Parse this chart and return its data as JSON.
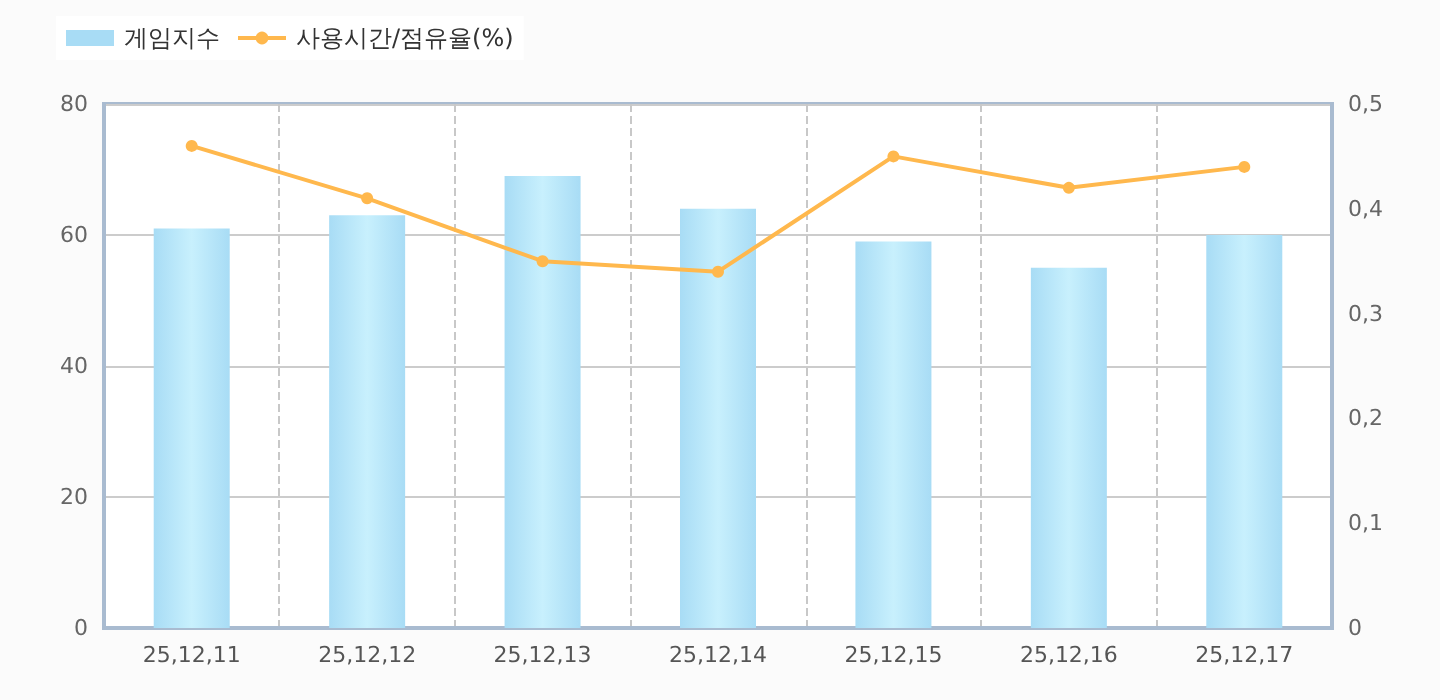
{
  "chart_data": {
    "type": "bar",
    "categories": [
      "25,12,11",
      "25,12,12",
      "25,12,13",
      "25,12,14",
      "25,12,15",
      "25,12,16",
      "25,12,17"
    ],
    "series": [
      {
        "name": "게임지수",
        "color": "#a8dcf5",
        "values": [
          61,
          63,
          69,
          64,
          59,
          55,
          60
        ]
      },
      {
        "name": "사용시간/점유율(%)",
        "type": "line",
        "axis": "y2",
        "color": "#ffb84d",
        "values": [
          0.46,
          0.41,
          0.35,
          0.34,
          0.45,
          0.42,
          0.44
        ]
      }
    ],
    "ylim": [
      0,
      80
    ],
    "yticks": [
      0,
      20,
      40,
      60,
      80
    ],
    "y2lim": [
      0,
      0.5
    ],
    "y2ticks": [
      {
        "value": 0,
        "label": "0"
      },
      {
        "value": 0.1,
        "label": "0,1"
      },
      {
        "value": 0.2,
        "label": "0,2"
      },
      {
        "value": 0.3,
        "label": "0,3"
      },
      {
        "value": 0.4,
        "label": "0,4"
      },
      {
        "value": 0.5,
        "label": "0,5"
      }
    ],
    "grid": true,
    "legend": "top left",
    "marker": "circle",
    "line_style": "solid"
  }
}
